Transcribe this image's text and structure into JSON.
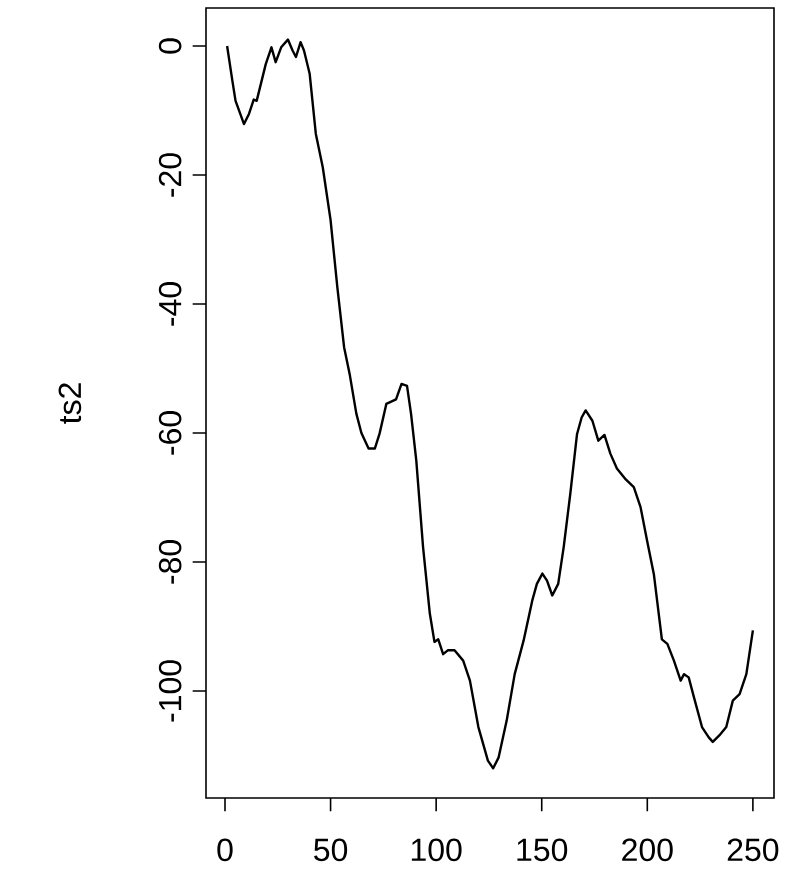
{
  "chart_data": {
    "type": "line",
    "ylabel": "ts2",
    "xlim": [
      -9,
      260
    ],
    "ylim": [
      -116.6,
      5.9
    ],
    "xticks": [
      0,
      50,
      100,
      150,
      200,
      250
    ],
    "yticks": [
      -100,
      -80,
      -60,
      -40,
      -20,
      0
    ],
    "grid": false,
    "marker": "none",
    "line_style": "solid",
    "series": [
      {
        "color": "#000000",
        "x": [
          1,
          3.5,
          5,
          9,
          11.4,
          13.6,
          15,
          19.3,
          22,
          24,
          26.6,
          29.8,
          32,
          33.6,
          35.8,
          37.4,
          40.1,
          43,
          46.3,
          50,
          53.2,
          56.4,
          59,
          62.2,
          64.6,
          68,
          71,
          73.2,
          76.4,
          81,
          83.6,
          86.2,
          88.1,
          90.6,
          93.8,
          97,
          99.2,
          101,
          103.3,
          105.5,
          108.7,
          112.8,
          116,
          120,
          124.5,
          127,
          129.6,
          133.4,
          137.2,
          141.4,
          145.5,
          147.7,
          150.3,
          152.5,
          155,
          157.8,
          160.4,
          163.5,
          166.7,
          168.9,
          170.8,
          174,
          176.8,
          179.7,
          182.5,
          185.6,
          189.8,
          193.6,
          196.8,
          199.9,
          203.1,
          206.9,
          209.5,
          212.6,
          215.8,
          217.4,
          219.6,
          222.1,
          225.9,
          229.1,
          231,
          234.1,
          237.4,
          240.5,
          243.7,
          246.9,
          250
        ],
        "values": [
          0,
          -5.4,
          -8.5,
          -12.1,
          -10.5,
          -8.3,
          -8.5,
          -2.8,
          -0.2,
          -2.5,
          -0.2,
          1,
          -0.7,
          -1.7,
          0.6,
          -0.7,
          -4.3,
          -13.6,
          -18.8,
          -27,
          -37.4,
          -46.7,
          -50.8,
          -57,
          -60,
          -62.4,
          -62.4,
          -60.1,
          -55.5,
          -54.8,
          -52.4,
          -52.7,
          -57,
          -64.3,
          -77.7,
          -88,
          -92.4,
          -92,
          -94.3,
          -93.7,
          -93.7,
          -95.3,
          -98.4,
          -105.6,
          -110.8,
          -112,
          -110.3,
          -104.6,
          -97.4,
          -92.2,
          -86,
          -83.4,
          -81.8,
          -82.9,
          -85.2,
          -83.4,
          -77.7,
          -69.5,
          -60.2,
          -57.6,
          -56.5,
          -58.1,
          -61.2,
          -60.3,
          -63.2,
          -65.5,
          -67.2,
          -68.4,
          -71.5,
          -76.7,
          -81.9,
          -92,
          -92.7,
          -95.3,
          -98.4,
          -97.4,
          -97.9,
          -101,
          -105.6,
          -107.2,
          -107.9,
          -106.9,
          -105.6,
          -101.5,
          -100.5,
          -97.4,
          -90.6
        ]
      }
    ]
  }
}
